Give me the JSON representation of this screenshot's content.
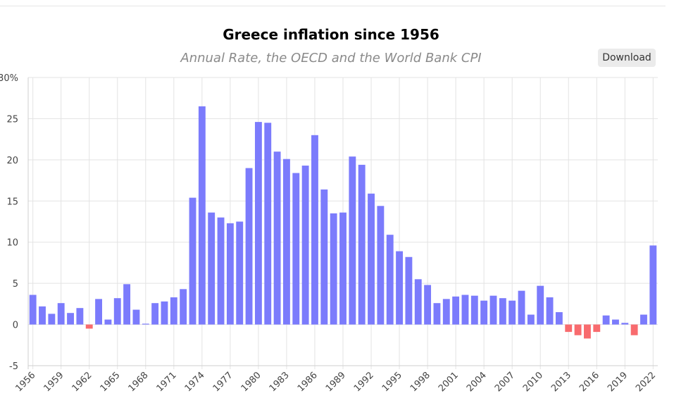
{
  "header": {
    "title": "Greece inflation since 1956",
    "subtitle": "Annual Rate, the OECD and the World Bank CPI",
    "download_label": "Download"
  },
  "colors": {
    "positive": "#7b7bfc",
    "negative": "#f86b6e",
    "grid": "#e3e3e3"
  },
  "chart_data": {
    "type": "bar",
    "title": "Greece inflation since 1956",
    "subtitle": "Annual Rate, the OECD and the World Bank CPI",
    "xlabel": "",
    "ylabel": "",
    "ylim": [
      -5,
      30
    ],
    "y_ticks": [
      "-5",
      "0",
      "5",
      "10",
      "15",
      "20",
      "25",
      "30%"
    ],
    "x_tick_labels": [
      "1956",
      "1959",
      "1962",
      "1965",
      "1968",
      "1971",
      "1974",
      "1977",
      "1980",
      "1983",
      "1986",
      "1989",
      "1992",
      "1995",
      "1998",
      "2001",
      "2004",
      "2007",
      "2010",
      "2013",
      "2016",
      "2019",
      "2022"
    ],
    "grid": true,
    "categories": [
      "1956",
      "1957",
      "1958",
      "1959",
      "1960",
      "1961",
      "1962",
      "1963",
      "1964",
      "1965",
      "1966",
      "1967",
      "1968",
      "1969",
      "1970",
      "1971",
      "1972",
      "1973",
      "1974",
      "1975",
      "1976",
      "1977",
      "1978",
      "1979",
      "1980",
      "1981",
      "1982",
      "1983",
      "1984",
      "1985",
      "1986",
      "1987",
      "1988",
      "1989",
      "1990",
      "1991",
      "1992",
      "1993",
      "1994",
      "1995",
      "1996",
      "1997",
      "1998",
      "1999",
      "2000",
      "2001",
      "2002",
      "2003",
      "2004",
      "2005",
      "2006",
      "2007",
      "2008",
      "2009",
      "2010",
      "2011",
      "2012",
      "2013",
      "2014",
      "2015",
      "2016",
      "2017",
      "2018",
      "2019",
      "2020",
      "2021",
      "2022"
    ],
    "values": [
      3.6,
      2.2,
      1.3,
      2.6,
      1.4,
      2.0,
      -0.5,
      3.1,
      0.6,
      3.2,
      4.9,
      1.8,
      0.1,
      2.6,
      2.8,
      3.3,
      4.3,
      15.4,
      26.5,
      13.6,
      13.0,
      12.3,
      12.5,
      19.0,
      24.6,
      24.5,
      21.0,
      20.1,
      18.4,
      19.3,
      23.0,
      16.4,
      13.5,
      13.6,
      20.4,
      19.4,
      15.9,
      14.4,
      10.9,
      8.9,
      8.2,
      5.5,
      4.8,
      2.6,
      3.1,
      3.4,
      3.6,
      3.5,
      2.9,
      3.5,
      3.2,
      2.9,
      4.1,
      1.2,
      4.7,
      3.3,
      1.5,
      -0.9,
      -1.3,
      -1.7,
      -0.9,
      1.1,
      0.6,
      0.2,
      -1.3,
      1.2,
      9.6
    ]
  }
}
